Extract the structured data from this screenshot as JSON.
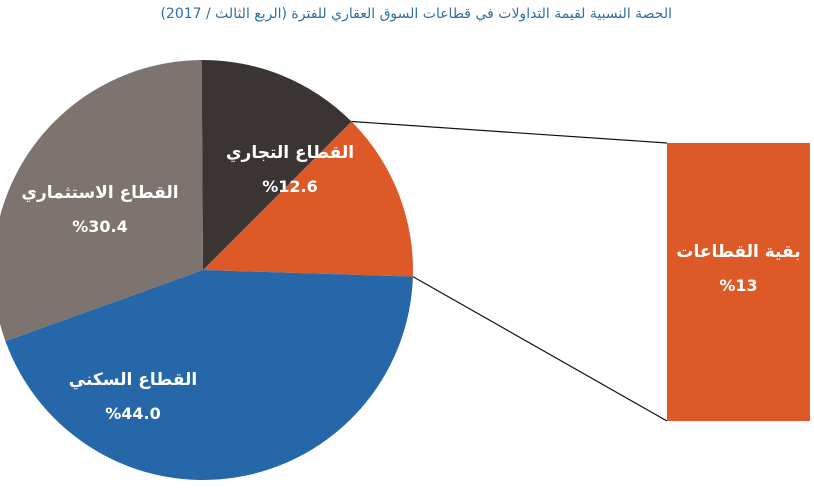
{
  "chart_data": {
    "type": "pie",
    "title": "الحصة النسبية لقيمة التداولات في قطاعات السوق العقاري للفترة (الربع الثالث / 2017)",
    "slices": [
      {
        "label": "القطاع السكني",
        "value": 44.0,
        "value_text": "%44.0",
        "color": "#2567a8"
      },
      {
        "label": "القطاع الاستثماري",
        "value": 30.4,
        "value_text": "%30.4",
        "color": "#7d7470"
      },
      {
        "label": "القطاع التجاري",
        "value": 12.6,
        "value_text": "%12.6",
        "color": "#3a3533"
      },
      {
        "label": "بقية القطاعات",
        "value": 13,
        "value_text": "%13",
        "color": "#dd5a28",
        "exploded_to_bar": true
      }
    ],
    "label_colors": {
      "dark_slices": "#ffffff",
      "bar": "#ffffff"
    }
  }
}
